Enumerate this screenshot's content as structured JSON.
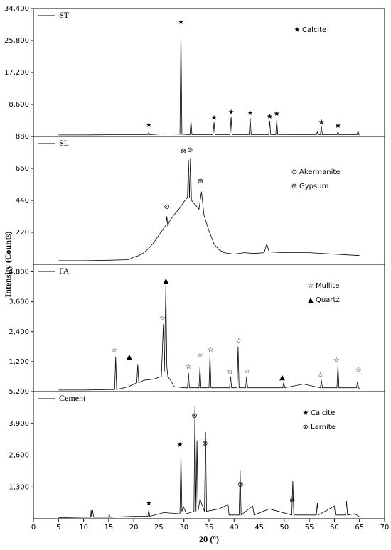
{
  "chart_data": [
    {
      "type": "line",
      "legend": "upper left",
      "x": [
        5,
        10,
        15,
        20,
        22.8,
        23,
        23.2,
        26,
        29.2,
        29.4,
        29.6,
        31.2,
        31.4,
        31.6,
        35.8,
        36,
        36.2,
        39.2,
        39.4,
        39.6,
        43,
        43.2,
        43.4,
        46.9,
        47.1,
        47.3,
        48.3,
        48.5,
        48.7,
        56.4,
        56.6,
        56.8,
        57.2,
        57.4,
        57.6,
        60.5,
        60.7,
        60.9,
        64.5,
        64.7,
        64.9,
        65
      ],
      "series": [
        {
          "name": "ST",
          "color": "#000000",
          "values": [
            400,
            400,
            450,
            500,
            500,
            1100,
            500,
            700,
            600,
            29000,
            600,
            500,
            4200,
            500,
            500,
            3800,
            500,
            500,
            5200,
            500,
            500,
            5000,
            500,
            500,
            4200,
            500,
            500,
            4400,
            500,
            450,
            1200,
            450,
            450,
            2700,
            450,
            450,
            1300,
            450,
            450,
            1500,
            450,
            400
          ]
        }
      ],
      "ylim": [
        0,
        34400
      ],
      "yticks": [
        {
          "value": 8600,
          "label": "8,600"
        },
        {
          "value": 17200,
          "label": "17,200"
        },
        {
          "value": 25800,
          "label": "25,800"
        },
        {
          "value": 34400,
          "label": "34,400"
        }
      ],
      "phases": [
        {
          "symbol": "★",
          "name": "Calcite"
        }
      ],
      "peak_marks": [
        {
          "x": 23,
          "y": 3060,
          "symbol": "★"
        },
        {
          "x": 29.4,
          "y": 30800,
          "symbol": "★"
        },
        {
          "x": 36,
          "y": 4970,
          "symbol": "★"
        },
        {
          "x": 39.4,
          "y": 6500,
          "symbol": "★"
        },
        {
          "x": 43.2,
          "y": 6300,
          "symbol": "★"
        },
        {
          "x": 47.1,
          "y": 5350,
          "symbol": "★"
        },
        {
          "x": 48.5,
          "y": 6100,
          "symbol": "★"
        },
        {
          "x": 57.4,
          "y": 3820,
          "symbol": "★"
        },
        {
          "x": 60.7,
          "y": 2870,
          "symbol": "★"
        }
      ]
    },
    {
      "type": "line",
      "legend": "upper left",
      "x": [
        5,
        10,
        15,
        19,
        20,
        21,
        22,
        23,
        24,
        25,
        26,
        26.4,
        26.6,
        26.8,
        27,
        28,
        29,
        30,
        30.7,
        30.9,
        31.1,
        31.3,
        31.5,
        32,
        33,
        33.5,
        34,
        35,
        36,
        37,
        38,
        40,
        42,
        44,
        46,
        46.5,
        47,
        50,
        55,
        60,
        65
      ],
      "series": [
        {
          "name": "SL",
          "color": "#000000",
          "values": [
            25,
            25,
            28,
            32,
            50,
            60,
            80,
            110,
            150,
            200,
            250,
            270,
            330,
            260,
            290,
            340,
            380,
            430,
            460,
            720,
            460,
            730,
            440,
            420,
            380,
            500,
            340,
            230,
            140,
            100,
            80,
            70,
            80,
            75,
            80,
            140,
            85,
            80,
            80,
            70,
            60
          ]
        }
      ],
      "ylim": [
        0,
        880
      ],
      "yticks": [
        220,
        440,
        660,
        880
      ],
      "phases": [
        {
          "symbol": "⊙",
          "name": "Akermanite"
        },
        {
          "symbol": "⊕",
          "name": "Gypsum"
        }
      ],
      "peak_marks": [
        {
          "x": 26.6,
          "y": 396,
          "symbol": "⊙"
        },
        {
          "x": 29.9,
          "y": 777,
          "symbol": "⊗"
        },
        {
          "x": 31.2,
          "y": 787,
          "symbol": "⊙"
        },
        {
          "x": 33.3,
          "y": 572,
          "symbol": "⊕"
        }
      ]
    },
    {
      "type": "line",
      "legend": "upper left",
      "x": [
        5,
        10,
        15,
        16.2,
        16.4,
        16.6,
        19,
        20.6,
        20.8,
        21,
        22,
        24,
        25.5,
        25.9,
        26.1,
        26.4,
        26.6,
        26.8,
        27.5,
        28,
        30,
        30.7,
        30.9,
        31.1,
        33,
        33.2,
        33.4,
        35,
        35.2,
        35.4,
        39.1,
        39.3,
        39.5,
        40.6,
        40.8,
        41,
        42.3,
        42.5,
        42.7,
        45,
        49.7,
        49.9,
        50.1,
        53.8,
        57.2,
        57.4,
        57.6,
        60.5,
        60.7,
        60.9,
        64.4,
        64.6,
        64.8,
        65
      ],
      "series": [
        {
          "name": "FA",
          "color": "#000000",
          "values": [
            60,
            60,
            80,
            80,
            1400,
            80,
            200,
            350,
            1100,
            350,
            450,
            500,
            600,
            2700,
            800,
            4300,
            1000,
            600,
            400,
            200,
            150,
            150,
            740,
            150,
            150,
            1000,
            150,
            150,
            1500,
            150,
            150,
            600,
            150,
            150,
            1800,
            150,
            150,
            600,
            150,
            150,
            150,
            370,
            150,
            300,
            150,
            450,
            150,
            150,
            1080,
            150,
            150,
            400,
            150,
            120
          ]
        }
      ],
      "ylim": [
        0,
        5100
      ],
      "yticks": [
        {
          "value": 1200,
          "label": "1,200"
        },
        {
          "value": 2400,
          "label": "2,400"
        },
        {
          "value": 3600,
          "label": "3,600"
        },
        {
          "value": 4800,
          "label": "4,800"
        }
      ],
      "phases": [
        {
          "symbol": "☆",
          "name": "Mullite"
        },
        {
          "symbol": "▲",
          "name": "Quartz"
        }
      ],
      "peak_marks": [
        {
          "x": 16.1,
          "y": 1650,
          "symbol": "☆"
        },
        {
          "x": 19.1,
          "y": 1400,
          "symbol": "▲"
        },
        {
          "x": 25.7,
          "y": 2930,
          "symbol": "☆"
        },
        {
          "x": 26.4,
          "y": 4450,
          "symbol": "▲"
        },
        {
          "x": 30.9,
          "y": 1000,
          "symbol": "☆"
        },
        {
          "x": 33.2,
          "y": 1450,
          "symbol": "☆"
        },
        {
          "x": 35.3,
          "y": 1680,
          "symbol": "☆"
        },
        {
          "x": 39.2,
          "y": 800,
          "symbol": "☆"
        },
        {
          "x": 40.9,
          "y": 2020,
          "symbol": "☆"
        },
        {
          "x": 42.6,
          "y": 830,
          "symbol": "☆"
        },
        {
          "x": 49.6,
          "y": 570,
          "symbol": "▲"
        },
        {
          "x": 57.2,
          "y": 655,
          "symbol": "☆"
        },
        {
          "x": 60.4,
          "y": 1250,
          "symbol": "☆"
        },
        {
          "x": 64.8,
          "y": 860,
          "symbol": "☆"
        }
      ]
    },
    {
      "type": "line",
      "legend": "upper left",
      "x": [
        5,
        10,
        11.4,
        11.5,
        11.6,
        11.8,
        12,
        15,
        15.1,
        15.2,
        20,
        22.8,
        23,
        23.2,
        26,
        29.2,
        29.4,
        29.6,
        29.9,
        30.5,
        32,
        32.2,
        32.4,
        32.6,
        32.8,
        33.2,
        34.1,
        34.3,
        34.5,
        37,
        38.8,
        39,
        41,
        41.2,
        41.4,
        43.7,
        44,
        47,
        51.5,
        51.7,
        51.9,
        56.4,
        56.6,
        56.8,
        60,
        60.2,
        62.2,
        62.4,
        62.6,
        64,
        65
      ],
      "series": [
        {
          "name": "Cement",
          "color": "#000000",
          "values": [
            40,
            60,
            60,
            350,
            60,
            350,
            60,
            60,
            250,
            60,
            100,
            100,
            350,
            100,
            250,
            200,
            2700,
            300,
            500,
            200,
            300,
            4600,
            300,
            3200,
            300,
            800,
            300,
            3550,
            300,
            400,
            580,
            150,
            150,
            1980,
            150,
            520,
            150,
            400,
            150,
            1540,
            150,
            150,
            640,
            150,
            520,
            150,
            150,
            730,
            150,
            200,
            80
          ]
        }
      ],
      "ylim": [
        0,
        5200
      ],
      "yticks": [
        {
          "value": 1300,
          "label": "1,300"
        },
        {
          "value": 2600,
          "label": "2,600"
        },
        {
          "value": 3900,
          "label": "3,900"
        },
        {
          "value": 5200,
          "label": "5,200"
        }
      ],
      "xlim": [
        0,
        70
      ],
      "xticks": [
        0,
        5,
        10,
        15,
        20,
        25,
        30,
        35,
        40,
        45,
        50,
        55,
        60,
        65,
        70
      ],
      "xlabel": "2θ (°)",
      "ylabel": "Intensity (Counts)",
      "phases": [
        {
          "symbol": "★",
          "name": "Calcite"
        },
        {
          "symbol": "⊗",
          "name": "Larnite"
        }
      ],
      "peak_marks": [
        {
          "x": 23,
          "y": 640,
          "symbol": "★"
        },
        {
          "x": 29.2,
          "y": 3020,
          "symbol": "★"
        },
        {
          "x": 32.1,
          "y": 4210,
          "symbol": "⊗"
        },
        {
          "x": 34.2,
          "y": 3080,
          "symbol": "⊗"
        },
        {
          "x": 41.3,
          "y": 1400,
          "symbol": "⊗"
        },
        {
          "x": 51.6,
          "y": 750,
          "symbol": "⊗"
        }
      ]
    }
  ]
}
